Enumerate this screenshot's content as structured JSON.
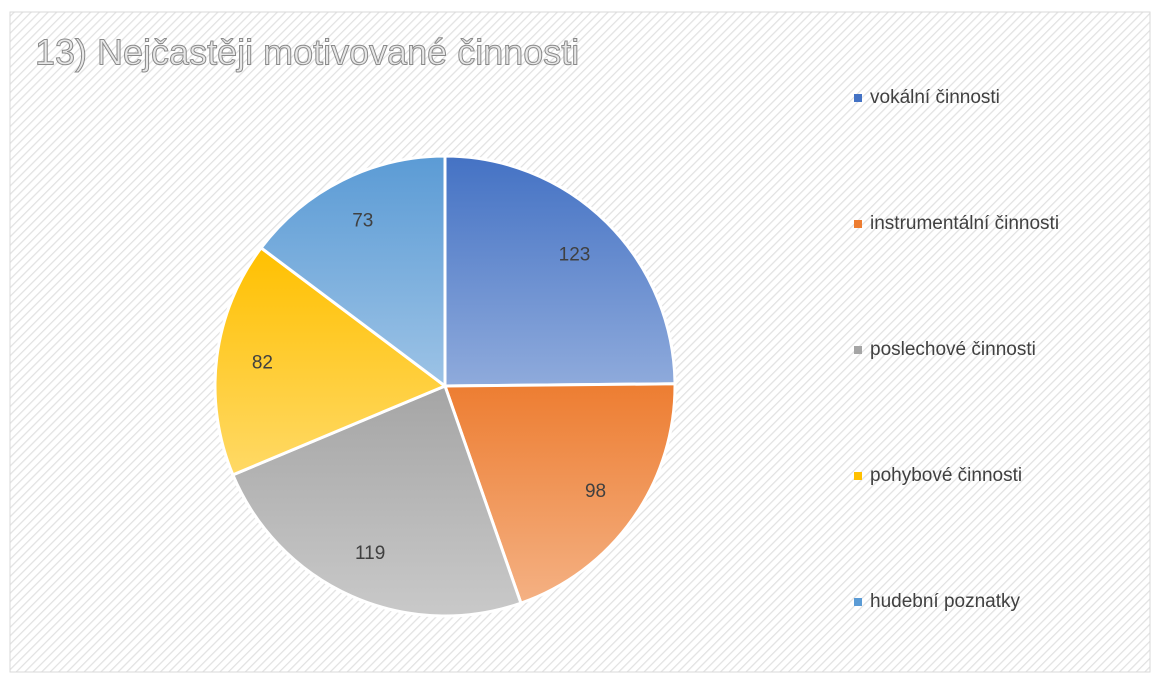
{
  "chart_data": {
    "type": "pie",
    "title": "13) Nejčastěji motivované činnosti",
    "categories": [
      "vokální činnosti",
      "instrumentální činnosti",
      "poslechové činnosti",
      "pohybové činnosti",
      "hudební poznatky"
    ],
    "values": [
      123,
      98,
      119,
      82,
      73
    ],
    "colors": [
      "#4472c4",
      "#ed7d31",
      "#a5a5a5",
      "#ffc000",
      "#5b9bd5"
    ],
    "legend": "right"
  }
}
